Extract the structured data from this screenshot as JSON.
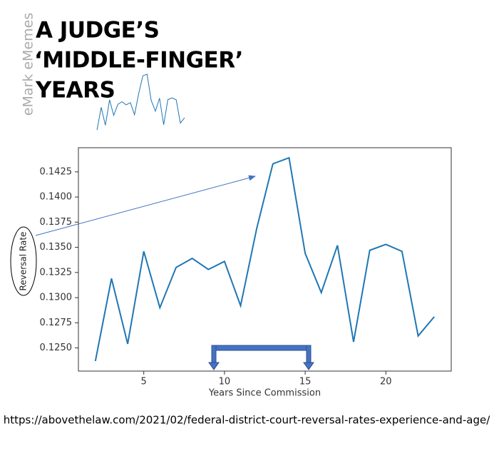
{
  "header": {
    "title_lines": [
      "A JUDGE’S",
      "‘MIDDLE-FINGER’",
      "YEARS"
    ],
    "watermark": "eMark eMemes"
  },
  "chart_data": {
    "type": "line",
    "x_label": "Years Since Commission",
    "y_label": "Reversal Rate",
    "x": [
      2,
      3,
      4,
      5,
      6,
      7,
      8,
      9,
      10,
      11,
      12,
      13,
      14,
      15,
      16,
      17,
      18,
      19,
      20,
      21,
      22,
      23
    ],
    "values": [
      0.1237,
      0.1319,
      0.1254,
      0.1346,
      0.129,
      0.133,
      0.1339,
      0.1328,
      0.1336,
      0.1292,
      0.1369,
      0.1433,
      0.1439,
      0.1344,
      0.1305,
      0.1352,
      0.1256,
      0.1347,
      0.1353,
      0.1346,
      0.1262,
      0.1281
    ],
    "color": "#1f77b4",
    "xlim": [
      0.95,
      24.05
    ],
    "ylim": [
      0.1227,
      0.1449
    ],
    "xticks": [
      5,
      10,
      15,
      20
    ],
    "yticks": [
      {
        "value": 0.125,
        "label": "0.1250"
      },
      0.1275,
      {
        "value": 0.13,
        "label": "0.1300"
      },
      0.1325,
      {
        "value": 0.135,
        "label": "0.1350"
      },
      0.1375,
      {
        "value": 0.14,
        "label": "0.1400"
      },
      0.1425
    ]
  },
  "footer": {
    "source": "https://abovethelaw.com/2021/02/federal-district-court-reversal-rates-experience-and-age/"
  }
}
